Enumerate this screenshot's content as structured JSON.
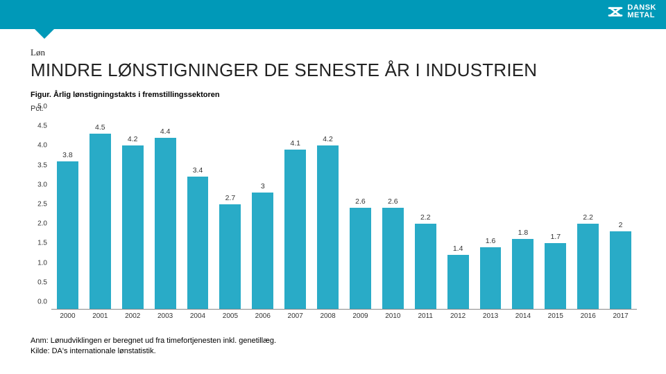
{
  "header": {
    "brand_line1": "DANSK",
    "brand_line2": "METAL"
  },
  "section_label": "Løn",
  "title": "MINDRE LØNSTIGNINGER DE SENESTE ÅR I INDUSTRIEN",
  "subtitle": "Figur. Årlig lønstigningstakts i fremstillingssektoren",
  "chart": {
    "type": "bar",
    "ylabel": "Pct.",
    "ylim_max": 5.0,
    "ytick_step": 0.5,
    "bar_color": "#29abc7",
    "years": [
      2000,
      2001,
      2002,
      2003,
      2004,
      2005,
      2006,
      2007,
      2008,
      2009,
      2010,
      2011,
      2012,
      2013,
      2014,
      2015,
      2016,
      2017
    ],
    "values": [
      3.8,
      4.5,
      4.2,
      4.4,
      3.4,
      2.7,
      3.0,
      4.1,
      4.2,
      2.6,
      2.6,
      2.2,
      1.4,
      1.6,
      1.8,
      1.7,
      2.2,
      2.0
    ],
    "labels": [
      "3.8",
      "4.5",
      "4.2",
      "4.4",
      "3.4",
      "2.7",
      "3",
      "4.1",
      "4.2",
      "2.6",
      "2.6",
      "2.2",
      "1.4",
      "1.6",
      "1.8",
      "1.7",
      "2.2",
      "2"
    ]
  },
  "footnote_line1": "Anm: Lønudviklingen er beregnet ud fra timefortjenesten inkl. genetillæg.",
  "footnote_line2": "Kilde: DA's internationale lønstatistik."
}
